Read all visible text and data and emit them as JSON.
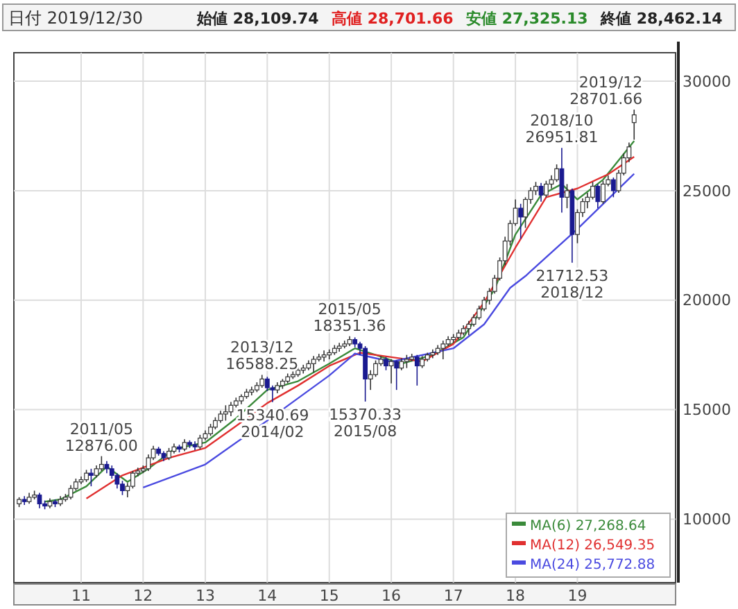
{
  "chart_data": {
    "type": "candlestick",
    "title": "日付 2019/12/30",
    "annotations": [
      "始値 28,109.74",
      "高値 28,701.66",
      "安値 27,325.13",
      "終値 28,462.14",
      {
        "text": "2011/05\n12876.00",
        "x": "2011-05",
        "y": 12876
      },
      {
        "text": "2013/12\n16588.25",
        "x": "2013-12",
        "y": 16588.25
      },
      {
        "text": "15340.69\n2014/02",
        "x": "2014-02",
        "y": 15340.69
      },
      {
        "text": "2015/05\n18351.36",
        "x": "2015-05",
        "y": 18351.36
      },
      {
        "text": "15370.33\n2015/08",
        "x": "2015-08",
        "y": 15370.33
      },
      {
        "text": "2018/10\n26951.81",
        "x": "2018-10",
        "y": 26951.81
      },
      {
        "text": "21712.53\n2018/12",
        "x": "2018-12",
        "y": 21712.53
      },
      {
        "text": "2019/12\n28701.66",
        "x": "2019-12",
        "y": 28701.66
      }
    ],
    "x": [
      "2010-01",
      "2010-02",
      "2010-03",
      "2010-04",
      "2010-05",
      "2010-06",
      "2010-07",
      "2010-08",
      "2010-09",
      "2010-10",
      "2010-11",
      "2010-12",
      "2011-01",
      "2011-02",
      "2011-03",
      "2011-04",
      "2011-05",
      "2011-06",
      "2011-07",
      "2011-08",
      "2011-09",
      "2011-10",
      "2011-11",
      "2011-12",
      "2012-01",
      "2012-02",
      "2012-03",
      "2012-04",
      "2012-05",
      "2012-06",
      "2012-07",
      "2012-08",
      "2012-09",
      "2012-10",
      "2012-11",
      "2012-12",
      "2013-01",
      "2013-02",
      "2013-03",
      "2013-04",
      "2013-05",
      "2013-06",
      "2013-07",
      "2013-08",
      "2013-09",
      "2013-10",
      "2013-11",
      "2013-12",
      "2014-01",
      "2014-02",
      "2014-03",
      "2014-04",
      "2014-05",
      "2014-06",
      "2014-07",
      "2014-08",
      "2014-09",
      "2014-10",
      "2014-11",
      "2014-12",
      "2015-01",
      "2015-02",
      "2015-03",
      "2015-04",
      "2015-05",
      "2015-06",
      "2015-07",
      "2015-08",
      "2015-09",
      "2015-10",
      "2015-11",
      "2015-12",
      "2016-01",
      "2016-02",
      "2016-03",
      "2016-04",
      "2016-05",
      "2016-06",
      "2016-07",
      "2016-08",
      "2016-09",
      "2016-10",
      "2016-11",
      "2016-12",
      "2017-01",
      "2017-02",
      "2017-03",
      "2017-04",
      "2017-05",
      "2017-06",
      "2017-07",
      "2017-08",
      "2017-09",
      "2017-10",
      "2017-11",
      "2017-12",
      "2018-01",
      "2018-02",
      "2018-03",
      "2018-04",
      "2018-05",
      "2018-06",
      "2018-07",
      "2018-08",
      "2018-09",
      "2018-10",
      "2018-11",
      "2018-12",
      "2019-01",
      "2019-02",
      "2019-03",
      "2019-04",
      "2019-05",
      "2019-06",
      "2019-07",
      "2019-08",
      "2019-09",
      "2019-10",
      "2019-11",
      "2019-12"
    ],
    "ohlc": [
      [
        10700,
        11000,
        10550,
        10900
      ],
      [
        10900,
        11050,
        10650,
        10800
      ],
      [
        10800,
        11200,
        10700,
        11000
      ],
      [
        11000,
        11300,
        10900,
        11100
      ],
      [
        11100,
        11200,
        10500,
        10700
      ],
      [
        10700,
        10850,
        10450,
        10600
      ],
      [
        10600,
        10950,
        10500,
        10800
      ],
      [
        10800,
        10900,
        10550,
        10700
      ],
      [
        10700,
        11050,
        10600,
        10900
      ],
      [
        10900,
        11150,
        10800,
        11000
      ],
      [
        11000,
        11550,
        10900,
        11400
      ],
      [
        11400,
        11850,
        11300,
        11700
      ],
      [
        11700,
        11950,
        11600,
        11800
      ],
      [
        11800,
        12250,
        11700,
        12100
      ],
      [
        12100,
        12300,
        11500,
        12000
      ],
      [
        12000,
        12450,
        11900,
        12300
      ],
      [
        12300,
        12876,
        12200,
        12500
      ],
      [
        12500,
        12650,
        12100,
        12300
      ],
      [
        12300,
        12450,
        11850,
        12000
      ],
      [
        12000,
        12100,
        11400,
        11600
      ],
      [
        11600,
        11750,
        11100,
        11300
      ],
      [
        11300,
        11650,
        11000,
        11500
      ],
      [
        11500,
        12200,
        11400,
        12100
      ],
      [
        12100,
        12350,
        11950,
        12200
      ],
      [
        12200,
        12450,
        12100,
        12300
      ],
      [
        12300,
        12950,
        12200,
        12800
      ],
      [
        12800,
        13350,
        12700,
        13200
      ],
      [
        13200,
        13300,
        12900,
        13000
      ],
      [
        13000,
        13100,
        12650,
        12800
      ],
      [
        12800,
        13250,
        12700,
        13100
      ],
      [
        13100,
        13450,
        13000,
        13300
      ],
      [
        13300,
        13400,
        13050,
        13200
      ],
      [
        13200,
        13650,
        13100,
        13500
      ],
      [
        13500,
        13600,
        13250,
        13400
      ],
      [
        13400,
        13550,
        13150,
        13300
      ],
      [
        13300,
        13850,
        13200,
        13700
      ],
      [
        13700,
        14050,
        13600,
        13900
      ],
      [
        13900,
        14350,
        13800,
        14200
      ],
      [
        14200,
        14650,
        14100,
        14500
      ],
      [
        14500,
        14950,
        14400,
        14800
      ],
      [
        14800,
        15200,
        14500,
        14900
      ],
      [
        14900,
        15350,
        14700,
        15200
      ],
      [
        15200,
        15550,
        15100,
        15400
      ],
      [
        15400,
        15700,
        15250,
        15600
      ],
      [
        15600,
        15950,
        15500,
        15800
      ],
      [
        15800,
        16050,
        15650,
        15900
      ],
      [
        15900,
        16250,
        15800,
        16100
      ],
      [
        16100,
        16588.25,
        16000,
        16400
      ],
      [
        16400,
        16500,
        15850,
        16000
      ],
      [
        16000,
        16100,
        15340.69,
        15900
      ],
      [
        15900,
        16250,
        15750,
        16100
      ],
      [
        16100,
        16400,
        15950,
        16300
      ],
      [
        16300,
        16650,
        16200,
        16500
      ],
      [
        16500,
        16750,
        16400,
        16600
      ],
      [
        16600,
        16950,
        16500,
        16800
      ],
      [
        16800,
        17050,
        16650,
        16900
      ],
      [
        16900,
        17250,
        16800,
        17100
      ],
      [
        17100,
        17450,
        16700,
        17300
      ],
      [
        17300,
        17550,
        17200,
        17400
      ],
      [
        17400,
        17700,
        17200,
        17500
      ],
      [
        17500,
        17750,
        17300,
        17600
      ],
      [
        17600,
        17950,
        17500,
        17800
      ],
      [
        17800,
        18050,
        17650,
        17900
      ],
      [
        17900,
        18150,
        17800,
        18000
      ],
      [
        18000,
        18351.36,
        17900,
        18200
      ],
      [
        18200,
        18300,
        17850,
        18000
      ],
      [
        18000,
        18100,
        17500,
        17800
      ],
      [
        17800,
        17900,
        15370.33,
        16400
      ],
      [
        16400,
        16800,
        15900,
        16600
      ],
      [
        16600,
        17250,
        16500,
        17100
      ],
      [
        17100,
        17450,
        17000,
        17300
      ],
      [
        17300,
        17400,
        16800,
        17000
      ],
      [
        17000,
        17300,
        16200,
        17200
      ],
      [
        17200,
        17250,
        15900,
        16900
      ],
      [
        16900,
        17350,
        16800,
        17200
      ],
      [
        17200,
        17500,
        16900,
        17300
      ],
      [
        17300,
        17550,
        17200,
        17400
      ],
      [
        17400,
        17500,
        16100,
        17000
      ],
      [
        17000,
        17450,
        16900,
        17300
      ],
      [
        17300,
        17600,
        17200,
        17500
      ],
      [
        17500,
        17750,
        17350,
        17600
      ],
      [
        17600,
        17950,
        17500,
        17800
      ],
      [
        17800,
        18150,
        17300,
        18000
      ],
      [
        18000,
        18350,
        17900,
        18200
      ],
      [
        18200,
        18450,
        18050,
        18300
      ],
      [
        18300,
        18650,
        18200,
        18500
      ],
      [
        18500,
        18850,
        18400,
        18700
      ],
      [
        18700,
        19050,
        18400,
        18900
      ],
      [
        18900,
        19350,
        18800,
        19200
      ],
      [
        19200,
        19750,
        19100,
        19600
      ],
      [
        19600,
        20150,
        19500,
        20000
      ],
      [
        20000,
        20550,
        19800,
        20400
      ],
      [
        20400,
        21150,
        20300,
        21000
      ],
      [
        21000,
        21950,
        20900,
        21800
      ],
      [
        21800,
        22900,
        21600,
        22700
      ],
      [
        22700,
        23650,
        22500,
        23500
      ],
      [
        23500,
        24600,
        23400,
        24200
      ],
      [
        24200,
        24400,
        22800,
        23800
      ],
      [
        23800,
        24700,
        23300,
        24600
      ],
      [
        24600,
        25150,
        24400,
        25000
      ],
      [
        25000,
        25400,
        24800,
        25200
      ],
      [
        25200,
        25350,
        24500,
        24800
      ],
      [
        24800,
        25450,
        24700,
        25300
      ],
      [
        25300,
        25700,
        25100,
        25500
      ],
      [
        25500,
        26200,
        25400,
        26000
      ],
      [
        26000,
        26951.81,
        24000,
        24700
      ],
      [
        24700,
        25300,
        24200,
        25000
      ],
      [
        25000,
        25100,
        21712.53,
        23000
      ],
      [
        23000,
        24150,
        22600,
        24000
      ],
      [
        24000,
        24650,
        23800,
        24500
      ],
      [
        24500,
        24900,
        24200,
        24700
      ],
      [
        24700,
        25400,
        24600,
        25200
      ],
      [
        25200,
        25300,
        24200,
        24500
      ],
      [
        24500,
        25450,
        24400,
        25300
      ],
      [
        25300,
        25700,
        25200,
        25500
      ],
      [
        25500,
        25600,
        24700,
        25000
      ],
      [
        25000,
        25950,
        24900,
        25800
      ],
      [
        25800,
        26700,
        25700,
        26500
      ],
      [
        26500,
        27200,
        26300,
        27000
      ],
      [
        28109.74,
        28701.66,
        27325.13,
        28462.14
      ]
    ],
    "series": [
      {
        "name": "MA(6) 27,268.64",
        "type": "line",
        "color": "#3a8a3a",
        "x": [
          "2010-06",
          "2010-09",
          "2011-02",
          "2011-06",
          "2011-10",
          "2012-02",
          "2012-07",
          "2013-01",
          "2013-07",
          "2014-01",
          "2014-07",
          "2015-01",
          "2015-06",
          "2015-10",
          "2016-03",
          "2016-09",
          "2017-03",
          "2017-09",
          "2018-01",
          "2018-06",
          "2018-10",
          "2019-01",
          "2019-06",
          "2019-12"
        ],
        "values": [
          10800,
          10900,
          11500,
          12400,
          11700,
          12300,
          13200,
          13500,
          14600,
          15900,
          16300,
          17100,
          17800,
          17500,
          17100,
          17500,
          18300,
          20500,
          23000,
          24800,
          25300,
          24600,
          25500,
          27268.64
        ]
      },
      {
        "name": "MA(12) 26,549.35",
        "type": "line",
        "color": "#e03030",
        "x": [
          "2011-02",
          "2011-09",
          "2012-06",
          "2013-01",
          "2013-07",
          "2014-01",
          "2014-07",
          "2015-01",
          "2015-07",
          "2016-01",
          "2016-07",
          "2017-01",
          "2017-07",
          "2018-01",
          "2018-07",
          "2019-01",
          "2019-07",
          "2019-12"
        ],
        "values": [
          10940,
          12000,
          12800,
          13250,
          14250,
          15300,
          16100,
          17000,
          17600,
          17400,
          17200,
          18000,
          19900,
          22400,
          24700,
          25100,
          25750,
          26549.35
        ]
      },
      {
        "name": "MA(24) 25,772.88",
        "type": "line",
        "color": "#4a4ae0",
        "x": [
          "2012-01",
          "2013-01",
          "2014-01",
          "2015-01",
          "2015-06",
          "2016-01",
          "2017-01",
          "2017-07",
          "2017-12",
          "2018-03",
          "2019-01",
          "2019-12"
        ],
        "values": [
          11440,
          12500,
          14500,
          16560,
          17560,
          17190,
          17800,
          18900,
          20560,
          21100,
          23250,
          25772.88
        ]
      }
    ],
    "xlim": [
      "2009-12",
      "2020-08"
    ],
    "xticks": [
      {
        "value": "2011-01",
        "label": "11"
      },
      {
        "value": "2012-01",
        "label": "12"
      },
      {
        "value": "2013-01",
        "label": "13"
      },
      {
        "value": "2014-01",
        "label": "14"
      },
      {
        "value": "2015-01",
        "label": "15"
      },
      {
        "value": "2016-01",
        "label": "16"
      },
      {
        "value": "2017-01",
        "label": "17"
      },
      {
        "value": "2018-01",
        "label": "18"
      },
      {
        "value": "2019-01",
        "label": "19"
      }
    ],
    "ylim": [
      7100,
      31300
    ],
    "yticks": [
      10000,
      15000,
      20000,
      25000,
      30000
    ],
    "grid": true,
    "legend": "bottom right"
  }
}
